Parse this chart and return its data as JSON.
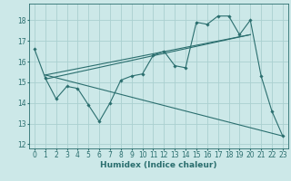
{
  "title": "",
  "xlabel": "Humidex (Indice chaleur)",
  "bg_color": "#cce8e8",
  "line_color": "#2a6e6e",
  "grid_color": "#aad0d0",
  "xlim": [
    -0.5,
    23.5
  ],
  "ylim": [
    11.8,
    18.8
  ],
  "yticks": [
    12,
    13,
    14,
    15,
    16,
    17,
    18
  ],
  "xticks": [
    0,
    1,
    2,
    3,
    4,
    5,
    6,
    7,
    8,
    9,
    10,
    11,
    12,
    13,
    14,
    15,
    16,
    17,
    18,
    19,
    20,
    21,
    22,
    23
  ],
  "main_line": {
    "x": [
      0,
      1,
      2,
      3,
      4,
      5,
      6,
      7,
      8,
      9,
      10,
      11,
      12,
      13,
      14,
      15,
      16,
      17,
      18,
      19,
      20,
      21,
      22,
      23
    ],
    "y": [
      16.6,
      15.2,
      14.2,
      14.8,
      14.7,
      13.9,
      13.1,
      14.0,
      15.1,
      15.3,
      15.4,
      16.3,
      16.5,
      15.8,
      15.7,
      17.9,
      17.8,
      18.2,
      18.2,
      17.3,
      18.0,
      15.3,
      13.6,
      12.4
    ]
  },
  "reg_line1": {
    "x": [
      1,
      20
    ],
    "y": [
      15.35,
      17.3
    ]
  },
  "reg_line2": {
    "x": [
      1,
      20
    ],
    "y": [
      15.15,
      17.3
    ]
  },
  "reg_line3": {
    "x": [
      1,
      23
    ],
    "y": [
      15.35,
      12.4
    ]
  },
  "tick_fontsize": 5.5,
  "xlabel_fontsize": 6.5
}
